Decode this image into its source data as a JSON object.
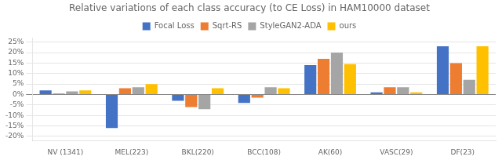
{
  "chart_data": {
    "type": "bar",
    "title": "Relative variations of each class accuracy (to CE Loss) in HAM10000 dataset",
    "categories": [
      "NV (1341)",
      "MEL(223)",
      "BKL(220)",
      "BCC(108)",
      "AK(60)",
      "VASC(29)",
      "DF(23)"
    ],
    "series": [
      {
        "name": "Focal Loss",
        "color": "#4472C4",
        "values": [
          2,
          -16,
          -3,
          -4,
          14,
          1,
          23
        ]
      },
      {
        "name": "Sqrt-RS",
        "color": "#ED7D31",
        "values": [
          0.5,
          3,
          -6,
          -1.5,
          17,
          3.5,
          15
        ]
      },
      {
        "name": "StyleGAN2-ADA",
        "color": "#A5A5A5",
        "values": [
          1.5,
          3.5,
          -7,
          3.5,
          20,
          3.5,
          7
        ]
      },
      {
        "name": "ours",
        "color": "#FFC000",
        "values": [
          2,
          5,
          3,
          3,
          14.5,
          1,
          23
        ]
      }
    ],
    "ylim": [
      -22,
      27
    ],
    "yticks": [
      {
        "value": -20,
        "label": "-20%"
      },
      {
        "value": -15,
        "label": "-15%"
      },
      {
        "value": -10,
        "label": "-10%"
      },
      {
        "value": -5,
        "label": "-5%"
      },
      {
        "value": 0,
        "label": "0%"
      },
      {
        "value": 5,
        "label": "5%"
      },
      {
        "value": 10,
        "label": "10%"
      },
      {
        "value": 15,
        "label": "15%"
      },
      {
        "value": 20,
        "label": "20%"
      },
      {
        "value": 25,
        "label": "25%"
      }
    ],
    "grid": true,
    "legend": "top"
  }
}
